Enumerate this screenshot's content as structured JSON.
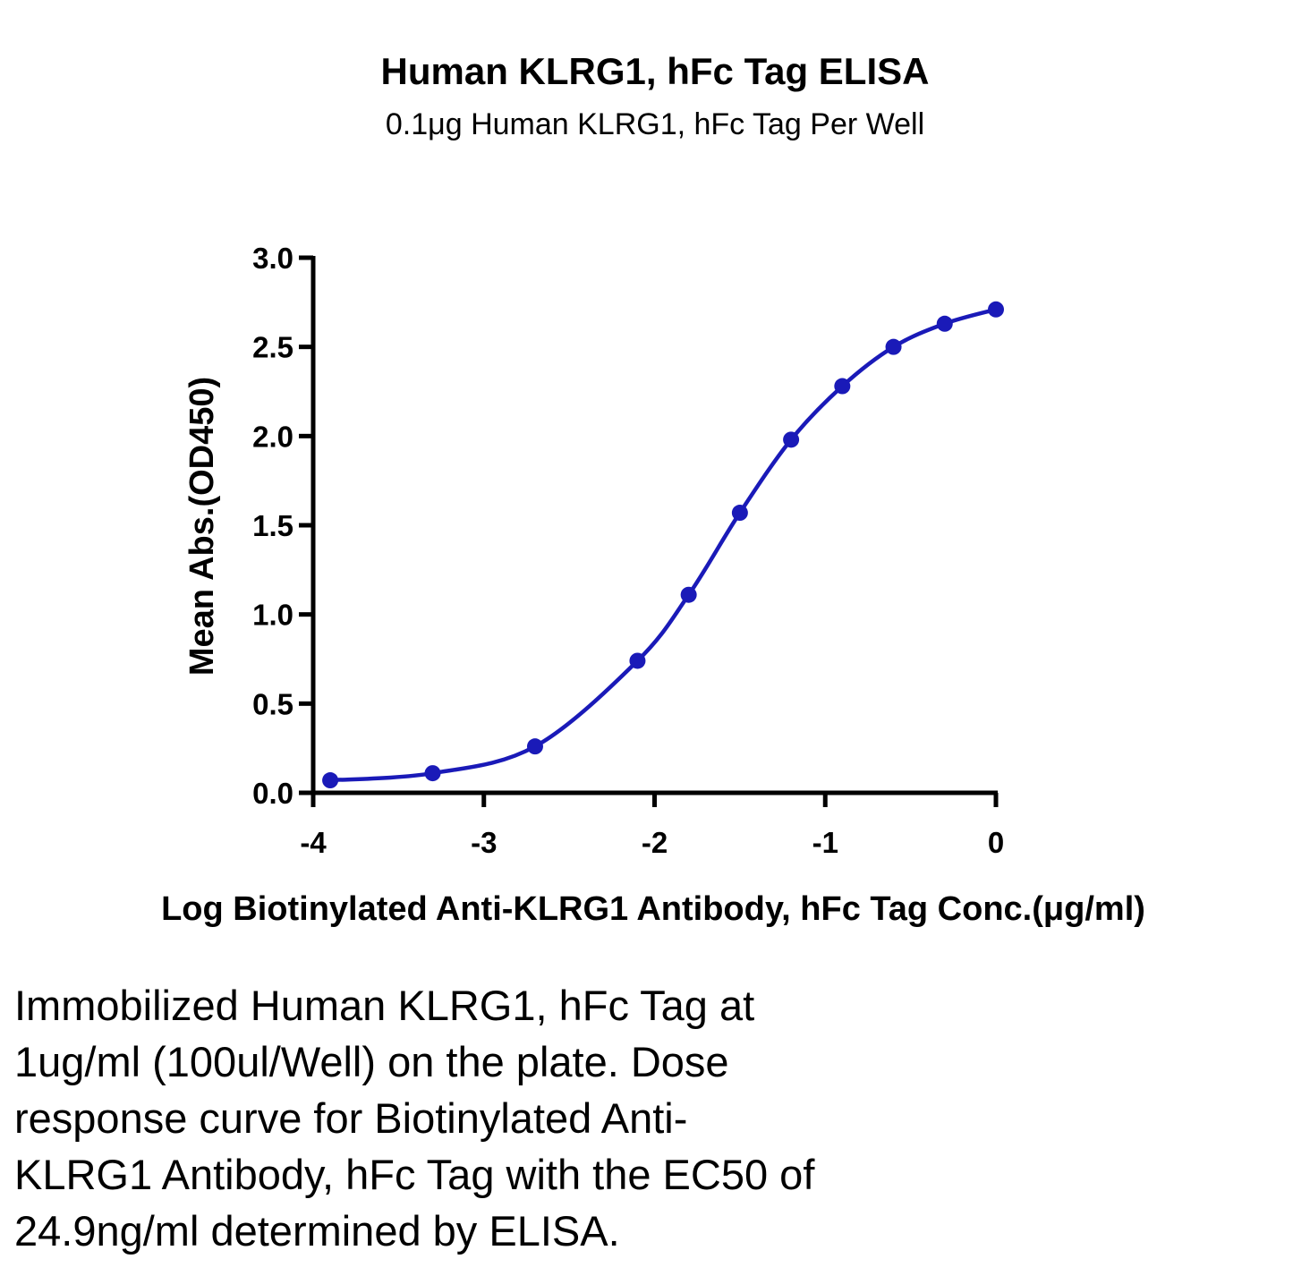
{
  "chart_data": {
    "type": "scatter",
    "title": "Human KLRG1, hFc Tag ELISA",
    "subtitle": "0.1μg Human KLRG1, hFc Tag Per Well",
    "xlabel": "Log Biotinylated Anti-KLRG1 Antibody, hFc Tag Conc.(μg/ml)",
    "ylabel": "Mean Abs.(OD450)",
    "xlim": [
      -4,
      0
    ],
    "ylim": [
      0,
      3.0
    ],
    "x_ticks": [
      -4,
      -3,
      -2,
      -1,
      0
    ],
    "x_tick_labels": [
      "-4",
      "-3",
      "-2",
      "-1",
      "0"
    ],
    "y_ticks": [
      0,
      0.5,
      1.0,
      1.5,
      2.0,
      2.5,
      3.0
    ],
    "y_tick_labels": [
      "0.0",
      "0.5",
      "1.0",
      "1.5",
      "2.0",
      "2.5",
      "3.0"
    ],
    "series": [
      {
        "x": [
          -3.9,
          -3.3,
          -2.7,
          -2.1,
          -1.8,
          -1.5,
          -1.2,
          -0.9,
          -0.6,
          -0.3,
          0.0
        ],
        "y": [
          0.07,
          0.11,
          0.26,
          0.74,
          1.11,
          1.57,
          1.98,
          2.28,
          2.5,
          2.63,
          2.71
        ],
        "color": "#1a1ab8",
        "fit": "4PL sigmoid curve"
      }
    ],
    "grid": false,
    "legend": "none"
  },
  "caption": {
    "lines": [
      "Immobilized Human KLRG1, hFc Tag at",
      "1ug/ml (100ul/Well) on the plate. Dose",
      "response curve for Biotinylated Anti-",
      "KLRG1 Antibody, hFc Tag with the EC50 of",
      "24.9ng/ml determined by ELISA."
    ]
  }
}
